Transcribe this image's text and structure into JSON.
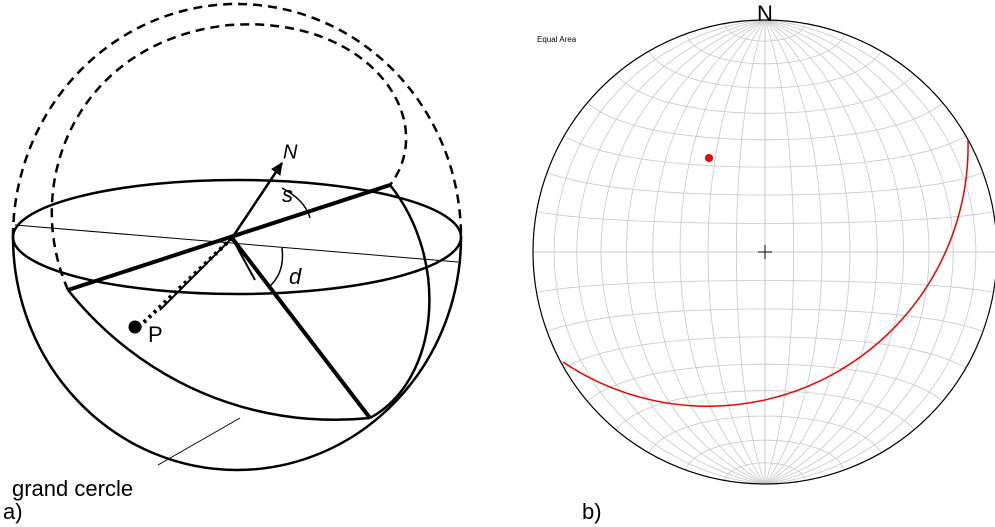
{
  "panel_a": {
    "north": "N",
    "strike": "s",
    "dip": "d",
    "pole": "P",
    "label": "grand cercle",
    "caption": "a)"
  },
  "panel_b": {
    "projection": "Equal Area",
    "north": "N",
    "caption": "b)"
  }
}
